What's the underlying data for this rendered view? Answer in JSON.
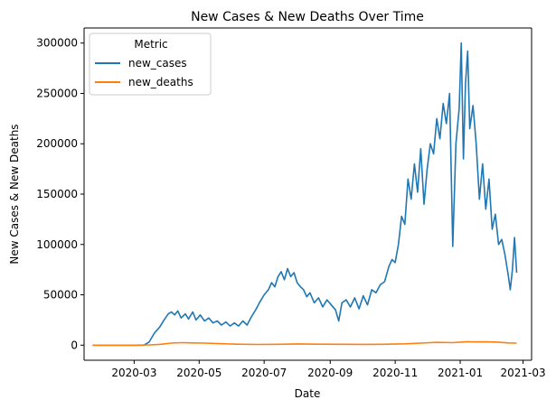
{
  "chart_data": {
    "type": "line",
    "title": "New Cases & New Deaths Over Time",
    "xlabel": "Date",
    "ylabel": "New Cases & New Deaths",
    "x_ticks": [
      "2020-03",
      "2020-05",
      "2020-07",
      "2020-09",
      "2020-11",
      "2021-01",
      "2021-03"
    ],
    "y_ticks": [
      "0",
      "50000",
      "100000",
      "150000",
      "200000",
      "250000",
      "300000"
    ],
    "xlim": [
      "2020-01-14",
      "2021-03-09"
    ],
    "ylim": [
      -15000,
      315000
    ],
    "legend": {
      "title": "Metric",
      "placement": "top-left"
    },
    "grid": false,
    "series": [
      {
        "name": "new_cases",
        "color": "#1f77b4",
        "points": [
          [
            "2020-01-22",
            0
          ],
          [
            "2020-02-05",
            0
          ],
          [
            "2020-02-20",
            0
          ],
          [
            "2020-03-01",
            0
          ],
          [
            "2020-03-10",
            0
          ],
          [
            "2020-03-15",
            3000
          ],
          [
            "2020-03-20",
            12000
          ],
          [
            "2020-03-25",
            18000
          ],
          [
            "2020-03-29",
            25000
          ],
          [
            "2020-04-02",
            31000
          ],
          [
            "2020-04-05",
            33000
          ],
          [
            "2020-04-08",
            30000
          ],
          [
            "2020-04-11",
            34000
          ],
          [
            "2020-04-14",
            27000
          ],
          [
            "2020-04-18",
            31000
          ],
          [
            "2020-04-21",
            26000
          ],
          [
            "2020-04-25",
            33000
          ],
          [
            "2020-04-28",
            25000
          ],
          [
            "2020-05-02",
            30000
          ],
          [
            "2020-05-06",
            24000
          ],
          [
            "2020-05-10",
            27000
          ],
          [
            "2020-05-14",
            22000
          ],
          [
            "2020-05-18",
            24000
          ],
          [
            "2020-05-22",
            20000
          ],
          [
            "2020-05-26",
            23000
          ],
          [
            "2020-05-30",
            19000
          ],
          [
            "2020-06-03",
            22000
          ],
          [
            "2020-06-07",
            19000
          ],
          [
            "2020-06-11",
            24000
          ],
          [
            "2020-06-15",
            20000
          ],
          [
            "2020-06-19",
            28000
          ],
          [
            "2020-06-23",
            35000
          ],
          [
            "2020-06-27",
            43000
          ],
          [
            "2020-07-01",
            50000
          ],
          [
            "2020-07-05",
            55000
          ],
          [
            "2020-07-08",
            62000
          ],
          [
            "2020-07-11",
            58000
          ],
          [
            "2020-07-14",
            68000
          ],
          [
            "2020-07-17",
            73000
          ],
          [
            "2020-07-20",
            65000
          ],
          [
            "2020-07-23",
            76000
          ],
          [
            "2020-07-26",
            68000
          ],
          [
            "2020-07-29",
            72000
          ],
          [
            "2020-08-01",
            62000
          ],
          [
            "2020-08-04",
            58000
          ],
          [
            "2020-08-07",
            55000
          ],
          [
            "2020-08-10",
            48000
          ],
          [
            "2020-08-13",
            52000
          ],
          [
            "2020-08-17",
            42000
          ],
          [
            "2020-08-21",
            47000
          ],
          [
            "2020-08-25",
            38000
          ],
          [
            "2020-08-29",
            45000
          ],
          [
            "2020-09-02",
            40000
          ],
          [
            "2020-09-06",
            35000
          ],
          [
            "2020-09-09",
            24000
          ],
          [
            "2020-09-12",
            42000
          ],
          [
            "2020-09-16",
            45000
          ],
          [
            "2020-09-20",
            38000
          ],
          [
            "2020-09-24",
            47000
          ],
          [
            "2020-09-28",
            36000
          ],
          [
            "2020-10-02",
            49000
          ],
          [
            "2020-10-06",
            40000
          ],
          [
            "2020-10-10",
            55000
          ],
          [
            "2020-10-14",
            52000
          ],
          [
            "2020-10-18",
            60000
          ],
          [
            "2020-10-22",
            63000
          ],
          [
            "2020-10-26",
            78000
          ],
          [
            "2020-10-29",
            85000
          ],
          [
            "2020-11-01",
            82000
          ],
          [
            "2020-11-04",
            100000
          ],
          [
            "2020-11-07",
            128000
          ],
          [
            "2020-11-10",
            120000
          ],
          [
            "2020-11-13",
            165000
          ],
          [
            "2020-11-16",
            145000
          ],
          [
            "2020-11-19",
            180000
          ],
          [
            "2020-11-22",
            152000
          ],
          [
            "2020-11-25",
            195000
          ],
          [
            "2020-11-28",
            140000
          ],
          [
            "2020-12-01",
            175000
          ],
          [
            "2020-12-04",
            200000
          ],
          [
            "2020-12-07",
            190000
          ],
          [
            "2020-12-10",
            225000
          ],
          [
            "2020-12-13",
            205000
          ],
          [
            "2020-12-16",
            240000
          ],
          [
            "2020-12-19",
            220000
          ],
          [
            "2020-12-22",
            250000
          ],
          [
            "2020-12-25",
            98000
          ],
          [
            "2020-12-28",
            200000
          ],
          [
            "2020-12-31",
            235000
          ],
          [
            "2021-01-02",
            300000
          ],
          [
            "2021-01-04",
            185000
          ],
          [
            "2021-01-06",
            260000
          ],
          [
            "2021-01-08",
            292000
          ],
          [
            "2021-01-10",
            215000
          ],
          [
            "2021-01-13",
            238000
          ],
          [
            "2021-01-16",
            200000
          ],
          [
            "2021-01-19",
            145000
          ],
          [
            "2021-01-22",
            180000
          ],
          [
            "2021-01-25",
            135000
          ],
          [
            "2021-01-28",
            165000
          ],
          [
            "2021-01-31",
            115000
          ],
          [
            "2021-02-03",
            130000
          ],
          [
            "2021-02-06",
            100000
          ],
          [
            "2021-02-09",
            105000
          ],
          [
            "2021-02-12",
            90000
          ],
          [
            "2021-02-15",
            70000
          ],
          [
            "2021-02-17",
            55000
          ],
          [
            "2021-02-19",
            75000
          ],
          [
            "2021-02-21",
            107000
          ],
          [
            "2021-02-23",
            72000
          ]
        ]
      },
      {
        "name": "new_deaths",
        "color": "#ff7f0e",
        "points": [
          [
            "2020-01-22",
            0
          ],
          [
            "2020-03-01",
            0
          ],
          [
            "2020-03-15",
            200
          ],
          [
            "2020-03-25",
            800
          ],
          [
            "2020-04-05",
            2000
          ],
          [
            "2020-04-15",
            2500
          ],
          [
            "2020-04-25",
            2200
          ],
          [
            "2020-05-05",
            2000
          ],
          [
            "2020-05-20",
            1500
          ],
          [
            "2020-06-05",
            1000
          ],
          [
            "2020-06-25",
            700
          ],
          [
            "2020-07-15",
            900
          ],
          [
            "2020-08-01",
            1200
          ],
          [
            "2020-08-20",
            1000
          ],
          [
            "2020-09-10",
            850
          ],
          [
            "2020-10-01",
            800
          ],
          [
            "2020-10-20",
            900
          ],
          [
            "2020-11-10",
            1300
          ],
          [
            "2020-11-25",
            2000
          ],
          [
            "2020-12-10",
            2800
          ],
          [
            "2020-12-25",
            2500
          ],
          [
            "2021-01-08",
            3500
          ],
          [
            "2021-01-15",
            3200
          ],
          [
            "2021-01-25",
            3300
          ],
          [
            "2021-02-05",
            3000
          ],
          [
            "2021-02-15",
            2200
          ],
          [
            "2021-02-23",
            2000
          ]
        ]
      }
    ]
  }
}
